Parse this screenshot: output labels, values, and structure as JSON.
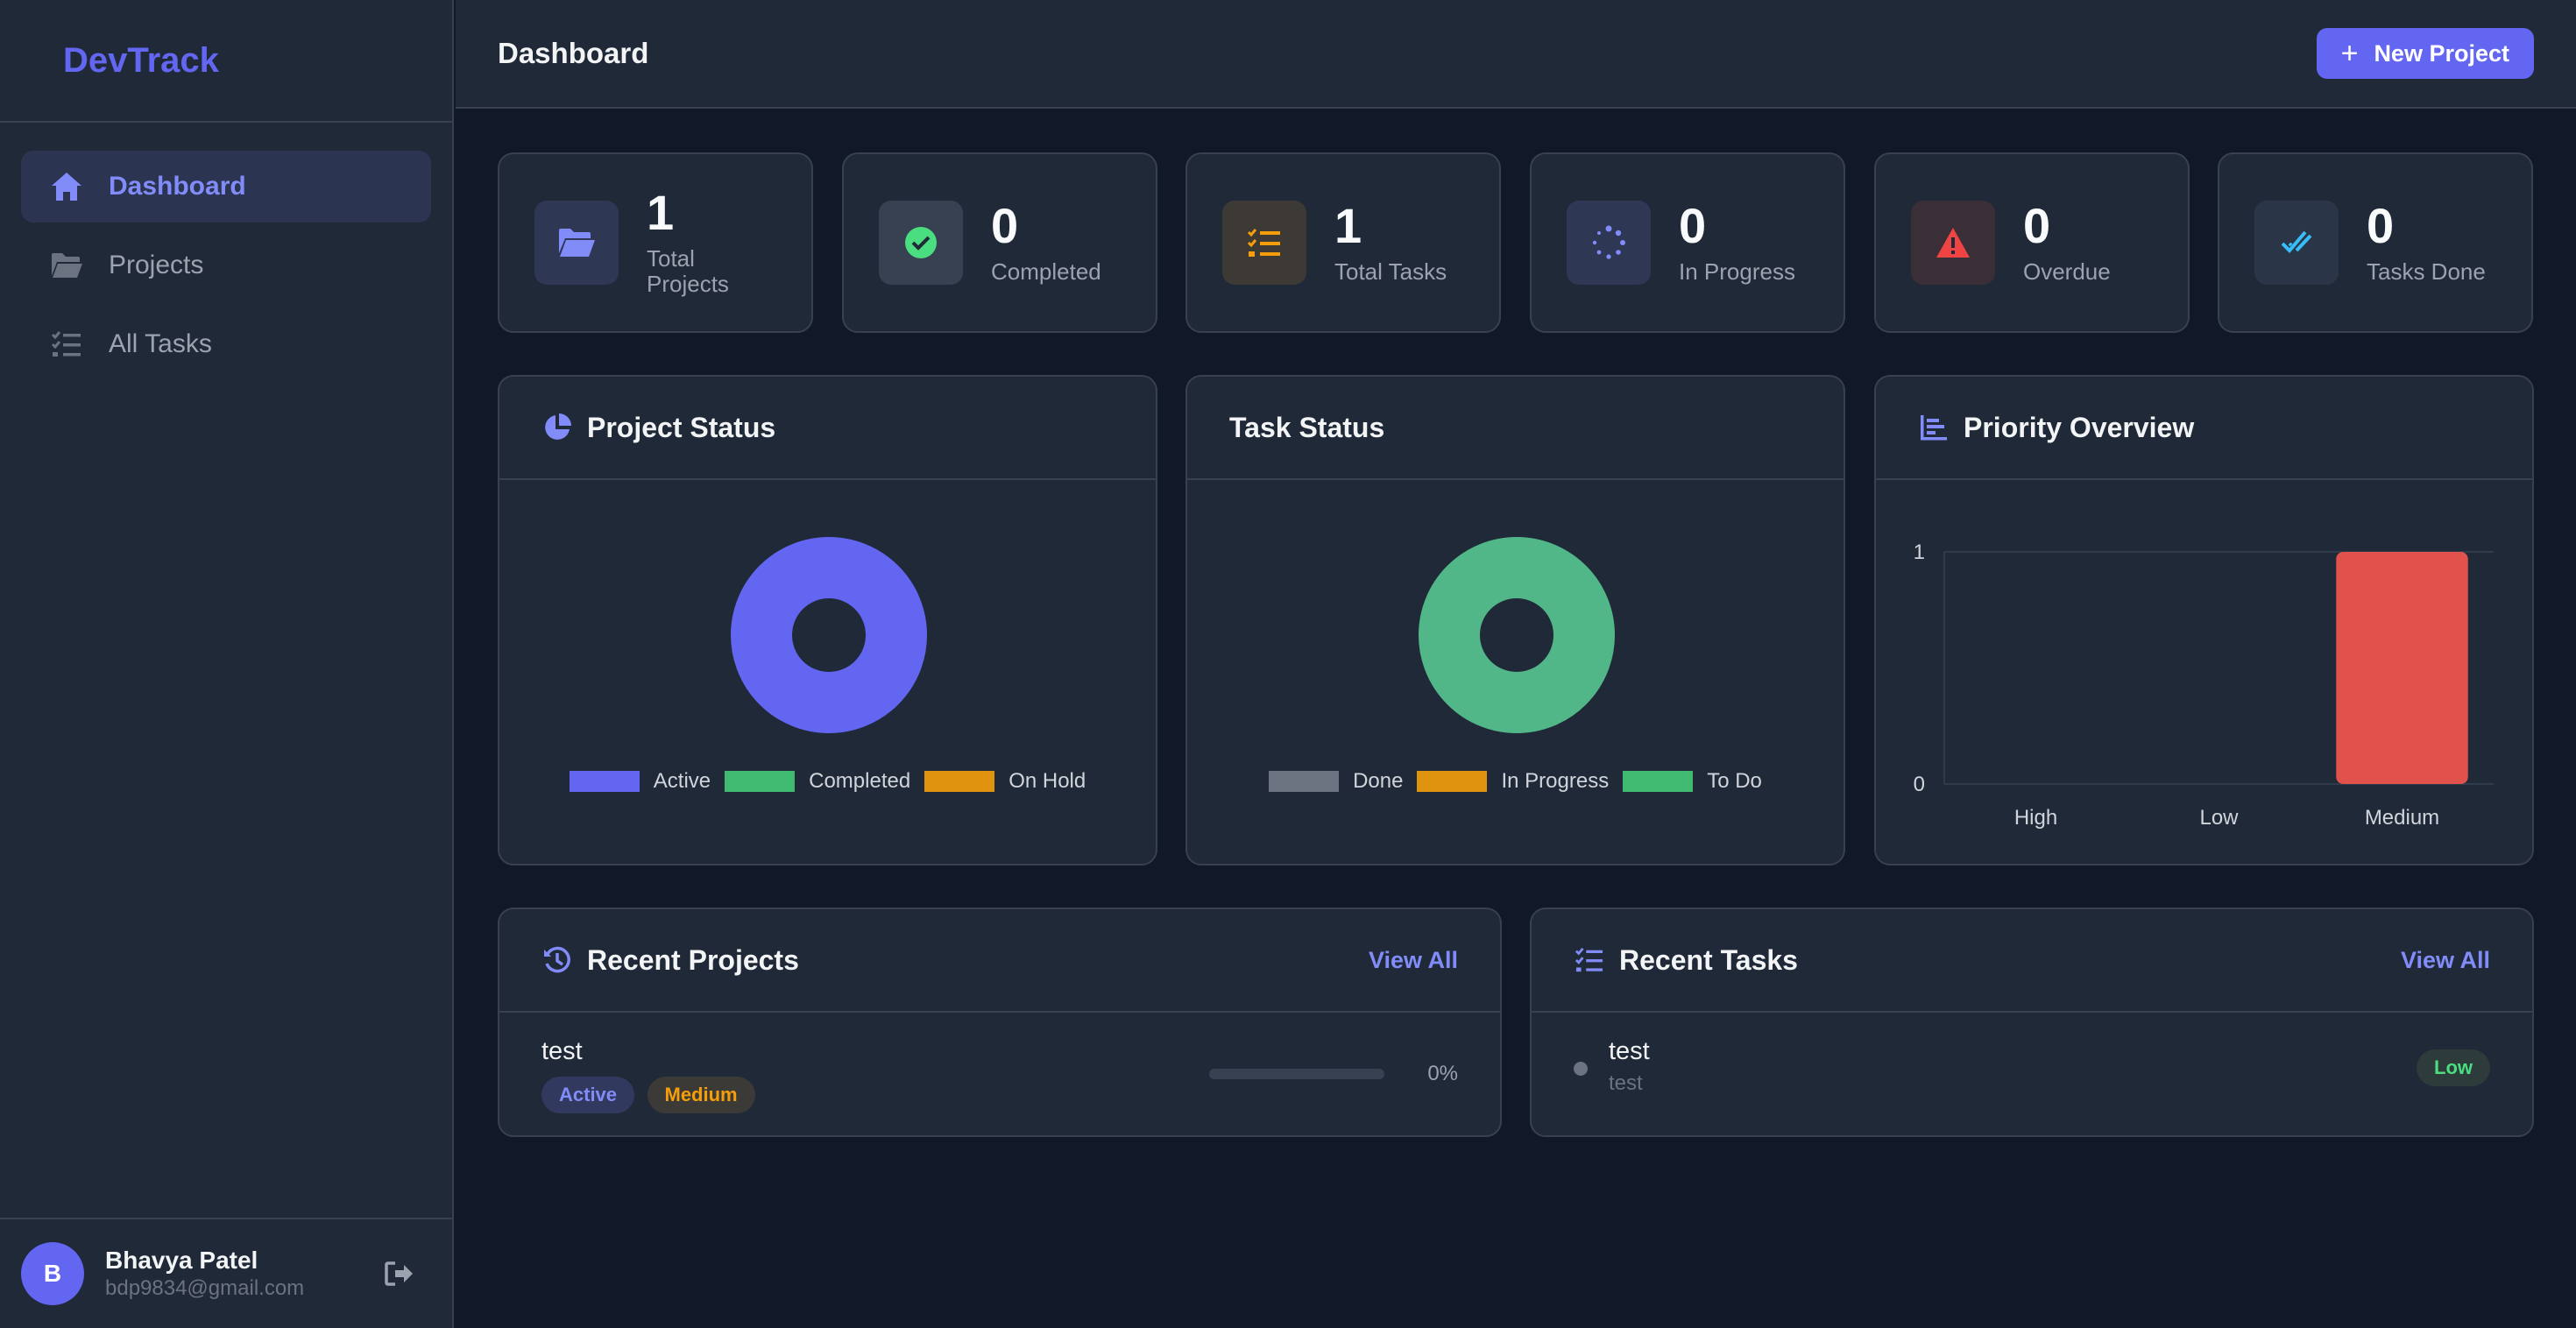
{
  "brand": "DevTrack",
  "sidebar": {
    "items": [
      {
        "label": "Dashboard",
        "icon": "home-icon",
        "active": true
      },
      {
        "label": "Projects",
        "icon": "folder-icon",
        "active": false
      },
      {
        "label": "All Tasks",
        "icon": "tasks-icon",
        "active": false
      }
    ]
  },
  "user": {
    "initial": "B",
    "name": "Bhavya Patel",
    "email": "bdp9834@gmail.com"
  },
  "header": {
    "title": "Dashboard",
    "new_project": "New Project"
  },
  "stats": [
    {
      "value": "1",
      "label": "Total Projects",
      "icon": "folder-open-icon",
      "color": "#6366f1"
    },
    {
      "value": "0",
      "label": "Completed",
      "icon": "check-circle-icon",
      "color": "#4ade80"
    },
    {
      "value": "1",
      "label": "Total Tasks",
      "icon": "task-list-icon",
      "color": "#f59e0b"
    },
    {
      "value": "0",
      "label": "In Progress",
      "icon": "spinner-icon",
      "color": "#6366f1"
    },
    {
      "value": "0",
      "label": "Overdue",
      "icon": "warning-icon",
      "color": "#ef4444"
    },
    {
      "value": "0",
      "label": "Tasks Done",
      "icon": "double-check-icon",
      "color": "#38bdf8"
    }
  ],
  "project_status": {
    "title": "Project Status",
    "legend": [
      {
        "label": "Active",
        "color": "#6366f1"
      },
      {
        "label": "Completed",
        "color": "#4ade80"
      },
      {
        "label": "On Hold",
        "color": "#f59e0b"
      }
    ]
  },
  "task_status": {
    "title": "Task Status",
    "legend": [
      {
        "label": "Done",
        "color": "#6b7280"
      },
      {
        "label": "In Progress",
        "color": "#f59e0b"
      },
      {
        "label": "To Do",
        "color": "#4ade80"
      }
    ]
  },
  "priority": {
    "title": "Priority Overview"
  },
  "chart_data": [
    {
      "type": "pie",
      "title": "Project Status",
      "categories": [
        "Active",
        "Completed",
        "On Hold"
      ],
      "values": [
        1,
        0,
        0
      ],
      "donut": true,
      "legend": "bottom"
    },
    {
      "type": "pie",
      "title": "Task Status",
      "categories": [
        "Done",
        "In Progress",
        "To Do"
      ],
      "values": [
        0,
        0,
        1
      ],
      "donut": true,
      "legend": "bottom"
    },
    {
      "type": "bar",
      "title": "Priority Overview",
      "categories": [
        "High",
        "Low",
        "Medium"
      ],
      "values": [
        0,
        0,
        1
      ],
      "ylim": [
        0,
        1
      ],
      "yticks": [
        "0",
        "1"
      ],
      "bar_color": "#e0524b",
      "grid": true
    }
  ],
  "recent_projects": {
    "title": "Recent Projects",
    "view_all": "View All",
    "items": [
      {
        "name": "test",
        "status": "Active",
        "priority": "Medium",
        "progress": 0,
        "progress_label": "0%"
      }
    ]
  },
  "recent_tasks": {
    "title": "Recent Tasks",
    "view_all": "View All",
    "items": [
      {
        "name": "test",
        "project": "test",
        "priority": "Low"
      }
    ]
  }
}
